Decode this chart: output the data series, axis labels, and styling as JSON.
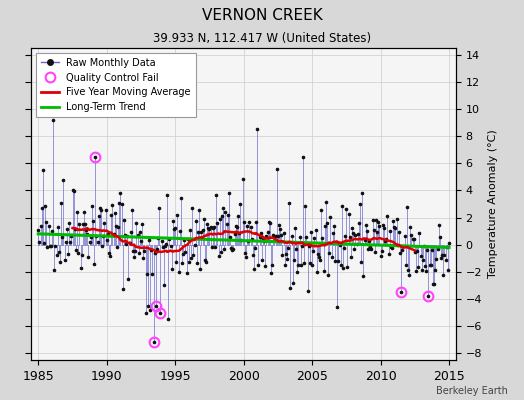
{
  "title": "VERNON CREEK",
  "subtitle": "39.933 N, 112.417 W (United States)",
  "ylabel": "Temperature Anomaly (°C)",
  "credit": "Berkeley Earth",
  "xlim": [
    1984.5,
    2015.5
  ],
  "ylim": [
    -8.5,
    14.5
  ],
  "yticks": [
    -8,
    -6,
    -4,
    -2,
    0,
    2,
    4,
    6,
    8,
    10,
    12,
    14
  ],
  "xticks": [
    1985,
    1990,
    1995,
    2000,
    2005,
    2010,
    2015
  ],
  "background_color": "#d8d8d8",
  "plot_bg_color": "#f5f5f5",
  "raw_line_color": "#6666cc",
  "raw_marker_color": "#111111",
  "moving_avg_color": "#dd0000",
  "trend_color": "#00bb00",
  "qc_fail_color": "#ff44ff",
  "grid_color": "#cccccc",
  "seed": 42
}
